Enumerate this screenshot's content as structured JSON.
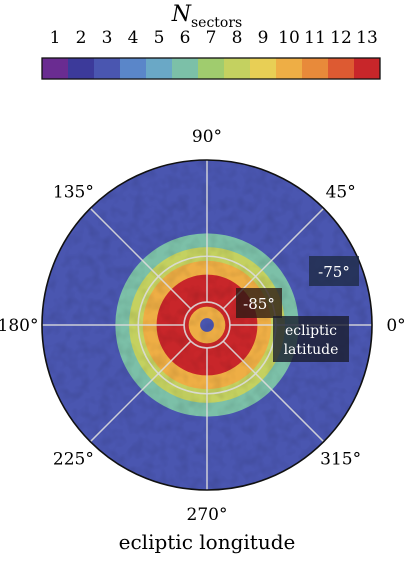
{
  "chart_data": {
    "type": "heatmap",
    "projection": "polar (south ecliptic pole)",
    "colorbar": {
      "title_main": "N",
      "title_sub": "sectors",
      "tick_labels": [
        "1",
        "2",
        "3",
        "4",
        "5",
        "6",
        "7",
        "8",
        "9",
        "10",
        "11",
        "12",
        "13"
      ],
      "colors": [
        "#6a2c91",
        "#3c3a9a",
        "#4a56b0",
        "#5a86c9",
        "#6aa8c6",
        "#7cc0a8",
        "#a0cc6e",
        "#c4d160",
        "#e8cf55",
        "#eeae45",
        "#e88a3a",
        "#dd5a32",
        "#c8262a"
      ]
    },
    "angular_axis": {
      "label": "ecliptic longitude",
      "tick_labels": [
        "0°",
        "45°",
        "90°",
        "135°",
        "180°",
        "225°",
        "270°",
        "315°"
      ],
      "tick_values_deg": [
        0,
        45,
        90,
        135,
        180,
        225,
        270,
        315
      ]
    },
    "radial_axis": {
      "label_line1": "ecliptic",
      "label_line2": "latitude",
      "rings": [
        {
          "latitude_deg": -85,
          "label": "-85°"
        },
        {
          "latitude_deg": -75,
          "label": "-75°"
        }
      ],
      "outer_edge_latitude_deg": -54
    },
    "zones": [
      {
        "from_lat_deg": -90,
        "to_lat_deg": -88.5,
        "n_sectors": 3
      },
      {
        "from_lat_deg": -88.5,
        "to_lat_deg": -86,
        "n_sectors": 10
      },
      {
        "from_lat_deg": -86,
        "to_lat_deg": -79,
        "n_sectors": 13
      },
      {
        "from_lat_deg": -79,
        "to_lat_deg": -76,
        "n_sectors": 10
      },
      {
        "from_lat_deg": -76,
        "to_lat_deg": -73,
        "n_sectors": 8
      },
      {
        "from_lat_deg": -73,
        "to_lat_deg": -70,
        "n_sectors": 6
      },
      {
        "from_lat_deg": -70,
        "to_lat_deg": -54,
        "n_sectors": 3
      }
    ],
    "grid": true
  }
}
